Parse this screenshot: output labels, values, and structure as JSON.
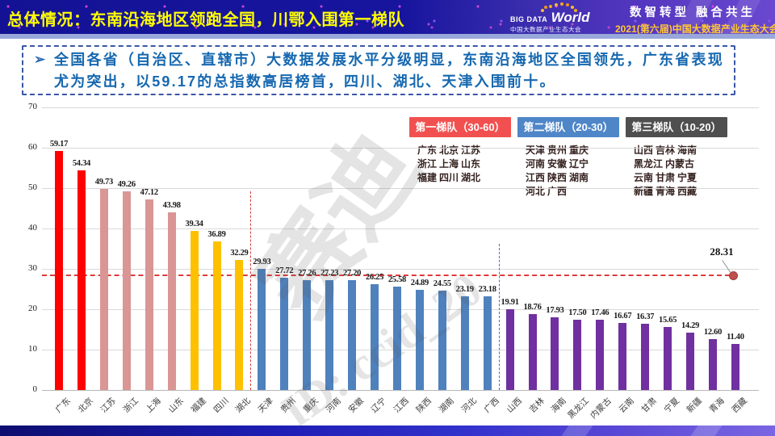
{
  "header": {
    "title": "总体情况：东南沿海地区领跑全国，川鄂入围第一梯队",
    "logo_big": "BIG DATA",
    "logo_world": "World",
    "logo_sub": "中国大数据产业生态大会",
    "slogan1": "数智转型 融合共生",
    "slogan2": "2021(第六届)中国大数据产业生态大会"
  },
  "summary": {
    "marker": "➢",
    "text": "全国各省（自治区、直辖市）大数据发展水平分级明显，东南沿海地区全国领先，广东省表现尤为突出，以59.17的总指数高居榜首，四川、湖北、天津入围前十。"
  },
  "watermarks": {
    "brand": "赛迪",
    "id_text": "ID: ccid_20"
  },
  "tiers": [
    {
      "label": "第一梯队（30-60）",
      "color": "#f25050",
      "provinces": [
        "广东 北京 江苏",
        "浙江 上海 山东",
        "福建 四川 湖北"
      ]
    },
    {
      "label": "第二梯队（20-30）",
      "color": "#4e86c8",
      "provinces": [
        "天津 贵州 重庆",
        "河南 安徽 辽宁",
        "江西 陕西 湖南",
        "河北 广西"
      ]
    },
    {
      "label": "第三梯队（10-20）",
      "color": "#4f4f4f",
      "provinces": [
        "山西 吉林 海南",
        "黑龙江 内蒙古",
        "云南 甘肃 宁夏",
        "新疆 青海 西藏"
      ]
    }
  ],
  "chart_data": {
    "type": "bar",
    "categories": [
      "广东",
      "北京",
      "江苏",
      "浙江",
      "上海",
      "山东",
      "福建",
      "四川",
      "湖北",
      "天津",
      "贵州",
      "重庆",
      "河南",
      "安徽",
      "辽宁",
      "江西",
      "陕西",
      "湖南",
      "河北",
      "广西",
      "山西",
      "吉林",
      "海南",
      "黑龙江",
      "内蒙古",
      "云南",
      "甘肃",
      "宁夏",
      "新疆",
      "青海",
      "西藏"
    ],
    "values": [
      59.17,
      54.34,
      49.73,
      49.26,
      47.12,
      43.98,
      39.34,
      36.89,
      32.29,
      29.93,
      27.72,
      27.26,
      27.23,
      27.2,
      26.25,
      25.58,
      24.89,
      24.55,
      23.19,
      23.18,
      19.91,
      18.76,
      17.93,
      17.5,
      17.46,
      16.67,
      16.37,
      15.65,
      14.29,
      12.6,
      11.4
    ],
    "color_groups": [
      {
        "count": 2,
        "color": "#fe0000"
      },
      {
        "count": 4,
        "color": "#d99694"
      },
      {
        "count": 3,
        "color": "#ffc000"
      },
      {
        "count": 11,
        "color": "#4f81bd"
      },
      {
        "count": 11,
        "color": "#7030a0"
      }
    ],
    "title": "",
    "xlabel": "",
    "ylabel": "",
    "ylim": [
      0,
      70
    ],
    "ytick_step": 10,
    "grid": true,
    "average_line": {
      "value": 28.31,
      "label": "28.31",
      "color": "#e03a3a",
      "dot_color": "#c0504d"
    },
    "separators": [
      {
        "after_index": 8,
        "color": "#e03a3a"
      },
      {
        "after_index": 19,
        "color": "#4472c4"
      }
    ]
  }
}
